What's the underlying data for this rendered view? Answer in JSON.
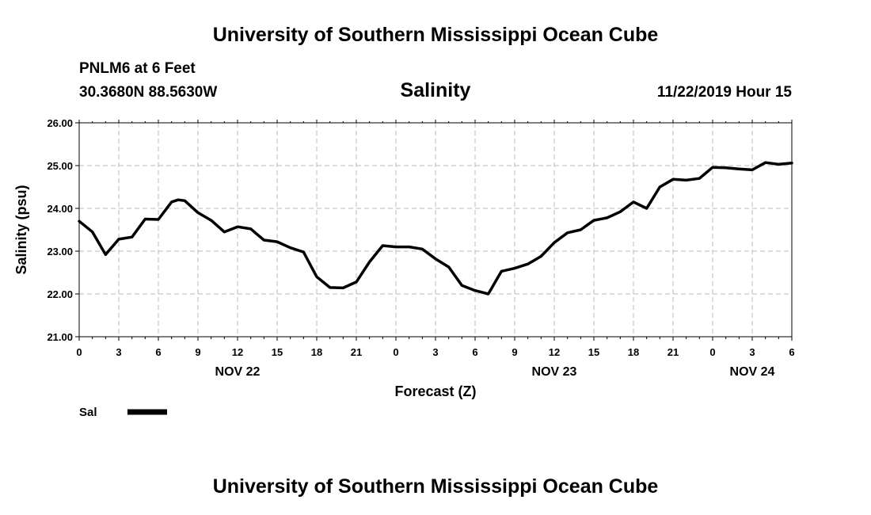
{
  "header": {
    "title": "University of Southern Mississippi Ocean Cube",
    "station": "PNLM6 at 6 Feet",
    "coordinates": "30.3680N 88.5630W",
    "timestamp": "11/22/2019 Hour 15"
  },
  "footer": {
    "title": "University of Southern Mississippi Ocean Cube"
  },
  "colors": {
    "line": "#000000",
    "grid": "#bbbbbb",
    "axis": "#000000"
  },
  "chart_data": {
    "type": "line",
    "title": "Salinity",
    "xlabel": "Forecast (Z)",
    "ylabel": "Salinity (psu)",
    "grid": true,
    "legend_position": "bottom-left",
    "ylim": [
      21.0,
      26.0
    ],
    "xlim_hours": [
      0,
      54
    ],
    "y_ticks": [
      "21.00",
      "22.00",
      "23.00",
      "24.00",
      "25.00",
      "26.00"
    ],
    "x_ticks": [
      "0",
      "3",
      "6",
      "9",
      "12",
      "15",
      "18",
      "21",
      "0",
      "3",
      "6",
      "9",
      "12",
      "15",
      "18",
      "21",
      "0",
      "3",
      "6"
    ],
    "date_labels": [
      {
        "label": "NOV 22",
        "hour": 12
      },
      {
        "label": "NOV 23",
        "hour": 36
      },
      {
        "label": "NOV 24",
        "hour": 51
      }
    ],
    "series": [
      {
        "name": "Sal",
        "x": [
          0,
          1,
          2,
          3,
          4,
          5,
          6,
          7,
          7.5,
          8,
          9,
          10,
          11,
          12,
          13,
          14,
          15,
          16,
          17,
          18,
          19,
          20,
          21,
          22,
          23,
          24,
          25,
          26,
          27,
          28,
          29,
          30,
          31,
          32,
          33,
          34,
          35,
          36,
          37,
          38,
          39,
          40,
          41,
          42,
          43,
          44,
          45,
          46,
          47,
          48,
          49,
          50,
          51,
          52,
          53,
          54
        ],
        "values": [
          23.7,
          23.45,
          22.92,
          23.28,
          23.33,
          23.75,
          23.74,
          24.15,
          24.2,
          24.18,
          23.9,
          23.72,
          23.45,
          23.57,
          23.52,
          23.26,
          23.22,
          23.08,
          22.98,
          22.4,
          22.15,
          22.14,
          22.28,
          22.75,
          23.13,
          23.1,
          23.1,
          23.05,
          22.82,
          22.63,
          22.2,
          22.08,
          22.0,
          22.53,
          22.6,
          22.7,
          22.88,
          23.2,
          23.43,
          23.5,
          23.72,
          23.78,
          23.92,
          24.15,
          24.0,
          24.5,
          24.68,
          24.66,
          24.7,
          24.96,
          24.95,
          24.92,
          24.9,
          25.07,
          25.03,
          25.06
        ]
      }
    ]
  }
}
